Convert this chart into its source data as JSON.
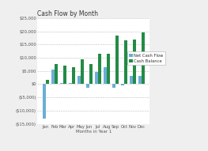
{
  "title": "Cash Flow by Month",
  "xlabel": "Months in Year 1",
  "months": [
    "Jan",
    "Feb",
    "Mar",
    "Apr",
    "May",
    "Jun",
    "Jul",
    "Aug",
    "Sep",
    "Oct",
    "Nov",
    "Dec"
  ],
  "net_cash_flow": [
    -13000,
    5500,
    500,
    500,
    3000,
    -1500,
    4500,
    6500,
    -1500,
    -500,
    3000,
    3000
  ],
  "cash_balance": [
    1500,
    7500,
    7000,
    6500,
    9500,
    7500,
    11500,
    11500,
    18500,
    16500,
    17000,
    19500
  ],
  "bar_color_net": "#6baed6",
  "bar_color_cash": "#238b45",
  "background_color": "#efefef",
  "plot_bg_color": "#ffffff",
  "grid_color": "#bbbbbb",
  "ylim": [
    -15000,
    25000
  ],
  "yticks": [
    -15000,
    -10000,
    -5000,
    0,
    5000,
    10000,
    15000,
    20000,
    25000
  ],
  "legend_labels": [
    "Net Cash Flow",
    "Cash Balance"
  ],
  "title_fontsize": 5.5,
  "axis_fontsize": 4.0,
  "tick_fontsize": 3.8,
  "legend_fontsize": 3.8
}
